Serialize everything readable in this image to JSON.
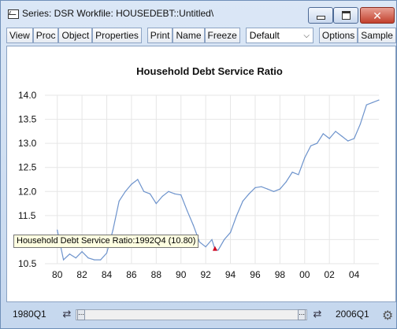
{
  "window": {
    "title": "Series: DSR   Workfile: HOUSEDEBT::Untitled\\"
  },
  "toolbar": {
    "buttons": [
      "View",
      "Proc",
      "Object",
      "Properties",
      "Print",
      "Name",
      "Freeze"
    ],
    "select_value": "Default",
    "right_buttons": [
      "Options",
      "Sample"
    ]
  },
  "icons": {
    "title": "graph-window-icon",
    "minimize": "minimize-icon",
    "maximize": "maximize-icon",
    "close": "close-icon",
    "dropdown": "chevron-down-icon",
    "options": "gear-icon"
  },
  "tooltip": {
    "text": "Household Debt Service Ratio:1992Q4  (10.80)"
  },
  "status": {
    "start": "1980Q1",
    "end": "2006Q1"
  },
  "colors": {
    "line": "#6d93cc",
    "marker": "#d0021b"
  },
  "chart_data": {
    "type": "line",
    "title": "Household Debt Service Ratio",
    "xlabel": "",
    "ylabel": "",
    "ylim": [
      10.5,
      14.0
    ],
    "xlim": [
      "1979Q1",
      "2006Q1"
    ],
    "yticks": [
      "10.5",
      "11.0",
      "11.5",
      "12.0",
      "12.5",
      "13.0",
      "13.5",
      "14.0"
    ],
    "xticks": [
      "80",
      "82",
      "84",
      "86",
      "88",
      "90",
      "92",
      "94",
      "96",
      "98",
      "00",
      "02",
      "04"
    ],
    "grid": true,
    "series": [
      {
        "name": "Household Debt Service Ratio",
        "x": [
          "1980Q1",
          "1980Q3",
          "1981Q1",
          "1981Q3",
          "1982Q1",
          "1982Q3",
          "1983Q1",
          "1983Q3",
          "1984Q1",
          "1984Q3",
          "1985Q1",
          "1985Q3",
          "1986Q1",
          "1986Q3",
          "1987Q1",
          "1987Q3",
          "1988Q1",
          "1988Q3",
          "1989Q1",
          "1989Q3",
          "1990Q1",
          "1990Q3",
          "1991Q1",
          "1991Q3",
          "1992Q1",
          "1992Q3",
          "1992Q4",
          "1993Q1",
          "1993Q3",
          "1994Q1",
          "1994Q3",
          "1995Q1",
          "1995Q3",
          "1996Q1",
          "1996Q3",
          "1997Q1",
          "1997Q3",
          "1998Q1",
          "1998Q3",
          "1999Q1",
          "1999Q3",
          "2000Q1",
          "2000Q3",
          "2001Q1",
          "2001Q3",
          "2002Q1",
          "2002Q3",
          "2003Q1",
          "2003Q3",
          "2004Q1",
          "2004Q3",
          "2005Q1",
          "2005Q3",
          "2006Q1"
        ],
        "values": [
          11.2,
          10.58,
          10.7,
          10.62,
          10.75,
          10.62,
          10.58,
          10.58,
          10.72,
          11.2,
          11.8,
          12.0,
          12.15,
          12.25,
          12.0,
          11.95,
          11.75,
          11.9,
          12.0,
          11.95,
          11.93,
          11.6,
          11.3,
          10.95,
          10.85,
          11.0,
          10.8,
          10.78,
          11.0,
          11.15,
          11.5,
          11.8,
          11.95,
          12.08,
          12.1,
          12.05,
          12.0,
          12.05,
          12.2,
          12.4,
          12.35,
          12.7,
          12.95,
          13.0,
          13.2,
          13.1,
          13.25,
          13.15,
          13.05,
          13.1,
          13.4,
          13.8,
          13.85,
          13.9
        ]
      }
    ],
    "highlight": {
      "x": "1992Q4",
      "y": 10.8
    }
  }
}
